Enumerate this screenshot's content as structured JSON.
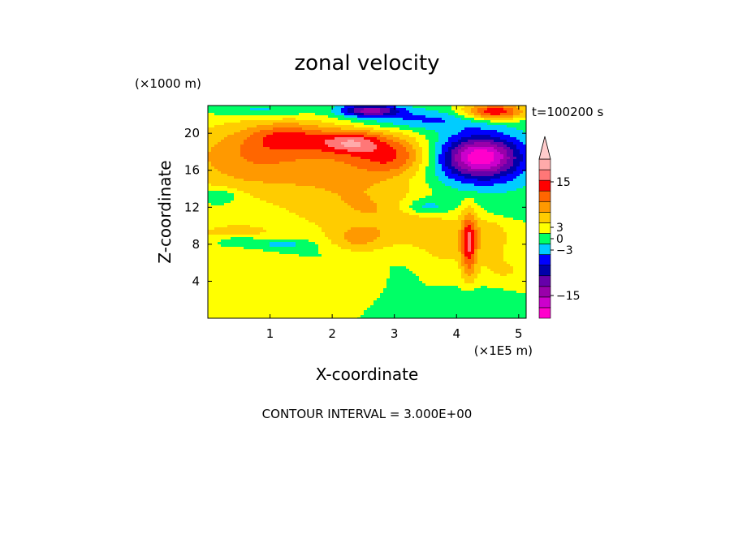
{
  "chart_data": {
    "type": "heatmap",
    "title": "zonal velocity",
    "xlabel": "X-coordinate",
    "ylabel": "Z-coordinate",
    "x_unit": "(×1E5 m)",
    "y_unit": "(×1000 m)",
    "time_label": "t=100200 s",
    "footer": "CONTOUR INTERVAL = 3.000E+00",
    "xlim": [
      0,
      5.12
    ],
    "ylim": [
      0,
      23
    ],
    "x_ticks": [
      "1",
      "2",
      "3",
      "4",
      "5"
    ],
    "x_tick_values": [
      1,
      2,
      3,
      4,
      5
    ],
    "y_ticks": [
      "4",
      "8",
      "12",
      "16",
      "20"
    ],
    "y_tick_values": [
      4,
      8,
      12,
      16,
      20
    ],
    "contour_interval": 3,
    "colorbar": {
      "levels": [
        -21,
        -18,
        -15,
        -12,
        -9,
        -6,
        -3,
        0,
        3,
        6,
        9,
        12,
        15,
        18,
        21
      ],
      "colors": [
        "#ff00cc",
        "#cc00cc",
        "#9900aa",
        "#6600aa",
        "#0000aa",
        "#0000ff",
        "#00ccff",
        "#00ff66",
        "#ffff00",
        "#ffcc00",
        "#ff9900",
        "#ff6600",
        "#ff0000",
        "#ff7777",
        "#ffaaaa",
        "#ffcccc"
      ],
      "tick_labels": [
        "15",
        "3",
        "0",
        "−3",
        "−15"
      ],
      "tick_values": [
        15,
        3,
        0,
        -3,
        -15
      ],
      "overflow_arrow_color": "#ffcccc"
    },
    "blobs": [
      {
        "x": 2.1,
        "z": 17,
        "rx": 1.6,
        "rz": 5,
        "v": 7
      },
      {
        "x": 0.5,
        "z": 17.5,
        "rx": 1.0,
        "rz": 3.5,
        "v": 6
      },
      {
        "x": 1.3,
        "z": 19.5,
        "rx": 0.6,
        "rz": 1.5,
        "v": 8
      },
      {
        "x": 2.3,
        "z": 19.0,
        "rx": 0.5,
        "rz": 1.2,
        "v": 11
      },
      {
        "x": 3.0,
        "z": 17.5,
        "rx": 0.6,
        "rz": 2.0,
        "v": 9
      },
      {
        "x": 4.3,
        "z": 17.0,
        "rx": 1.0,
        "rz": 3.5,
        "v": -10
      },
      {
        "x": 4.4,
        "z": 17.5,
        "rx": 0.55,
        "rz": 2.0,
        "v": -15
      },
      {
        "x": 3.3,
        "z": 21.5,
        "rx": 1.2,
        "rz": 1.2,
        "v": -7
      },
      {
        "x": 2.6,
        "z": 22.5,
        "rx": 0.5,
        "rz": 0.7,
        "v": -16
      },
      {
        "x": 4.6,
        "z": 22.3,
        "rx": 0.5,
        "rz": 0.9,
        "v": 16
      },
      {
        "x": 0.9,
        "z": 22.5,
        "rx": 0.8,
        "rz": 0.8,
        "v": -5
      },
      {
        "x": 0.2,
        "z": 13.2,
        "rx": 0.3,
        "rz": 0.8,
        "v": -5
      },
      {
        "x": 1.0,
        "z": 13.0,
        "rx": 0.9,
        "rz": 1.2,
        "v": 0
      },
      {
        "x": 2.7,
        "z": 11.5,
        "rx": 1.2,
        "rz": 2.5,
        "v": 4
      },
      {
        "x": 0.4,
        "z": 9.0,
        "rx": 0.8,
        "rz": 1.5,
        "v": 4
      },
      {
        "x": 0.5,
        "z": 8.3,
        "rx": 0.4,
        "rz": 0.6,
        "v": -6
      },
      {
        "x": 1.2,
        "z": 8.0,
        "rx": 0.4,
        "rz": 0.6,
        "v": -5
      },
      {
        "x": 1.9,
        "z": 7.5,
        "rx": 0.5,
        "rz": 1.5,
        "v": -1
      },
      {
        "x": 2.4,
        "z": 8.5,
        "rx": 0.5,
        "rz": 1.5,
        "v": 6
      },
      {
        "x": 3.3,
        "z": 9.5,
        "rx": 0.5,
        "rz": 2.0,
        "v": 3
      },
      {
        "x": 3.5,
        "z": 12.0,
        "rx": 0.4,
        "rz": 1.0,
        "v": -7
      },
      {
        "x": 3.8,
        "z": 8.0,
        "rx": 0.4,
        "rz": 2.5,
        "v": 4
      },
      {
        "x": 4.2,
        "z": 8.0,
        "rx": 0.12,
        "rz": 3.5,
        "v": 12
      },
      {
        "x": 4.5,
        "z": 9.0,
        "rx": 0.4,
        "rz": 2.5,
        "v": 5
      },
      {
        "x": 4.7,
        "z": 11.5,
        "rx": 0.4,
        "rz": 1.2,
        "v": -2
      },
      {
        "x": 2.0,
        "z": 3.5,
        "rx": 1.2,
        "rz": 2.0,
        "v": 3
      },
      {
        "x": 0.5,
        "z": 2.0,
        "rx": 0.8,
        "rz": 1.5,
        "v": 2
      },
      {
        "x": 3.0,
        "z": 3.0,
        "rx": 0.5,
        "rz": 2.5,
        "v": -2
      },
      {
        "x": 4.4,
        "z": 2.0,
        "rx": 0.6,
        "rz": 1.5,
        "v": -3
      },
      {
        "x": 4.8,
        "z": 5.0,
        "rx": 0.6,
        "rz": 2.0,
        "v": 3
      }
    ]
  }
}
